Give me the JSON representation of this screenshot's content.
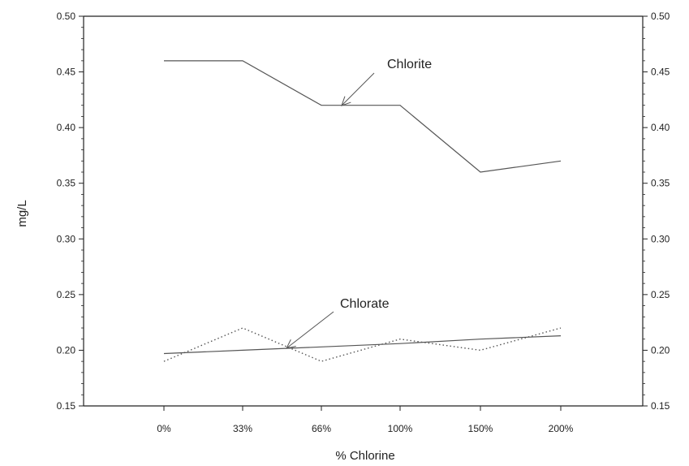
{
  "chart_data": {
    "type": "line",
    "categories": [
      "0%",
      "33%",
      "66%",
      "100%",
      "150%",
      "200%"
    ],
    "series": [
      {
        "name": "Chlorite",
        "values": [
          0.46,
          0.46,
          0.42,
          0.42,
          0.36,
          0.37
        ],
        "style": "solid"
      },
      {
        "name": "Chlorate",
        "values": [
          0.19,
          0.22,
          0.19,
          0.21,
          0.2,
          0.22
        ],
        "style": "dotted"
      },
      {
        "name": "",
        "values": [
          0.197,
          0.2,
          0.203,
          0.206,
          0.21,
          0.213
        ],
        "style": "solid-trend"
      }
    ],
    "xlabel": "% Chlorine",
    "ylabel": "mg/L",
    "ylim": [
      0.15,
      0.5
    ],
    "yticks": [
      "0.15",
      "0.20",
      "0.25",
      "0.30",
      "0.35",
      "0.40",
      "0.45",
      "0.50"
    ],
    "annotations": [
      {
        "text": "Chlorite",
        "points_to_series": "Chlorite"
      },
      {
        "text": "Chlorate",
        "points_to_series": "Chlorate"
      }
    ],
    "grid": false,
    "colors": {
      "line": "#555555",
      "axis": "#222222"
    }
  }
}
